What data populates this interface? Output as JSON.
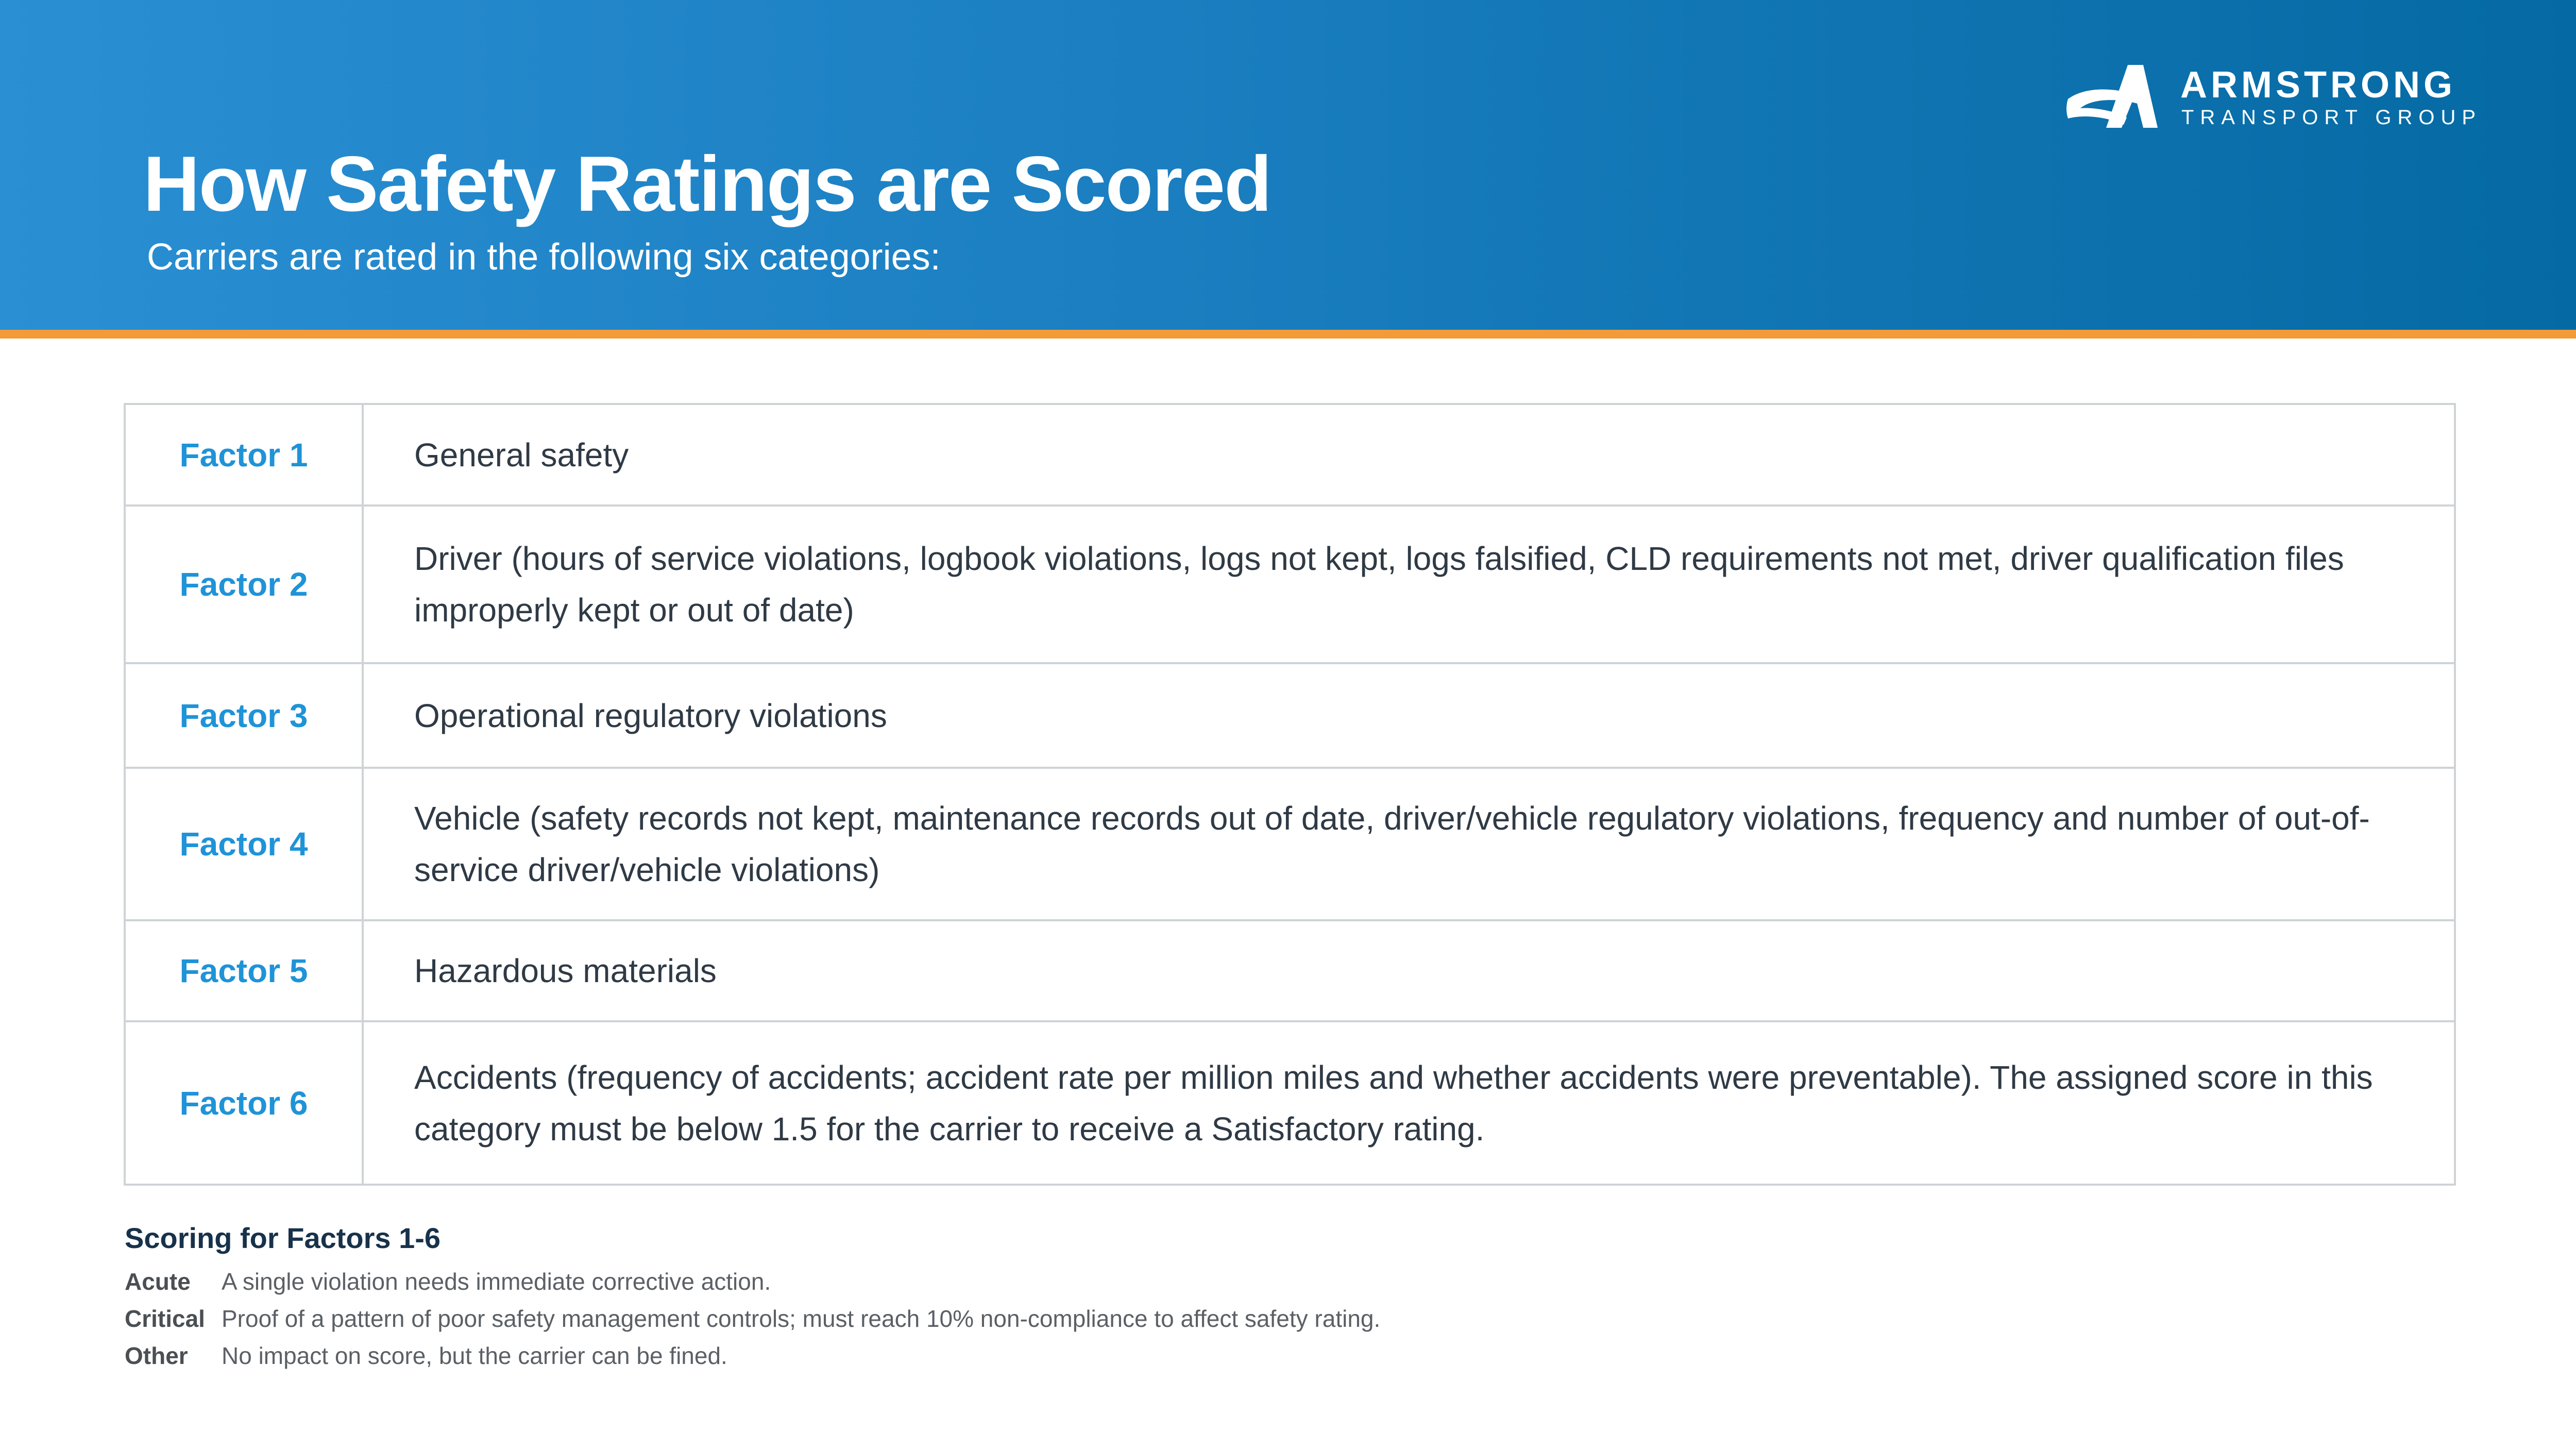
{
  "header": {
    "title": "How Safety Ratings are Scored",
    "subtitle": "Carriers are rated in the following six categories:",
    "background_color": "#1a7ec0",
    "stripe_color": "#f29b38"
  },
  "logo": {
    "icon": "armstrong-a-logo-icon",
    "name": "ARMSTRONG",
    "tagline": "TRANSPORT GROUP"
  },
  "factors": [
    {
      "label": "Factor 1",
      "description": "General safety"
    },
    {
      "label": "Factor 2",
      "description": "Driver (hours of service violations, logbook violations, logs not kept, logs falsified, CLD requirements not met, driver qualification files improperly kept or out of date)"
    },
    {
      "label": "Factor 3",
      "description": "Operational regulatory violations"
    },
    {
      "label": "Factor 4",
      "description": "Vehicle (safety records not kept, maintenance records out of date, driver/vehicle regulatory violations, frequency and number of out-of-service driver/vehicle violations)"
    },
    {
      "label": "Factor 5",
      "description": "Hazardous materials"
    },
    {
      "label": "Factor 6",
      "description": "Accidents (frequency of accidents; accident rate per million miles and whether accidents were preventable). The assigned score in this category must be below 1.5 for the carrier to receive a Satisfactory rating."
    }
  ],
  "factor_label_color": "#1f93d8",
  "scoring": {
    "title": "Scoring for Factors 1-6",
    "items": [
      {
        "key": "Acute",
        "text": "A single violation needs immediate corrective action."
      },
      {
        "key": "Critical",
        "text": "Proof of a pattern of poor safety management controls; must reach 10% non-compliance to affect safety rating."
      },
      {
        "key": "Other",
        "text": "No impact on score, but the carrier can be fined."
      }
    ]
  }
}
